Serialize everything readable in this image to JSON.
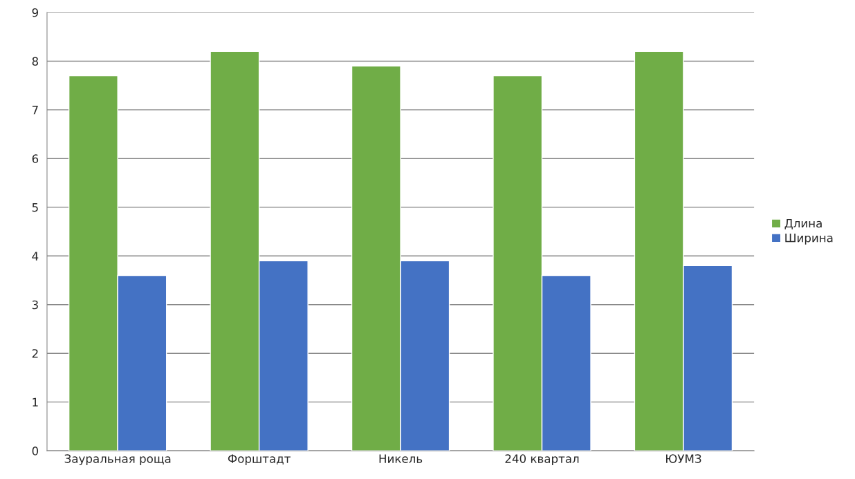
{
  "chart_data": {
    "type": "bar",
    "categories": [
      "Зауральная роща",
      "Форштадт",
      "Никель",
      "240 квартал",
      "ЮУМЗ"
    ],
    "series": [
      {
        "name": "Длина",
        "color": "#70ad47",
        "values": [
          7.7,
          8.2,
          7.9,
          7.7,
          8.2
        ]
      },
      {
        "name": "Ширина",
        "color": "#4472c4",
        "values": [
          3.6,
          3.9,
          3.9,
          3.6,
          3.8
        ]
      }
    ],
    "ylim": [
      0,
      9
    ],
    "yticks": [
      0,
      1,
      2,
      3,
      4,
      5,
      6,
      7,
      8,
      9
    ],
    "grid": "y",
    "legend": "right"
  }
}
